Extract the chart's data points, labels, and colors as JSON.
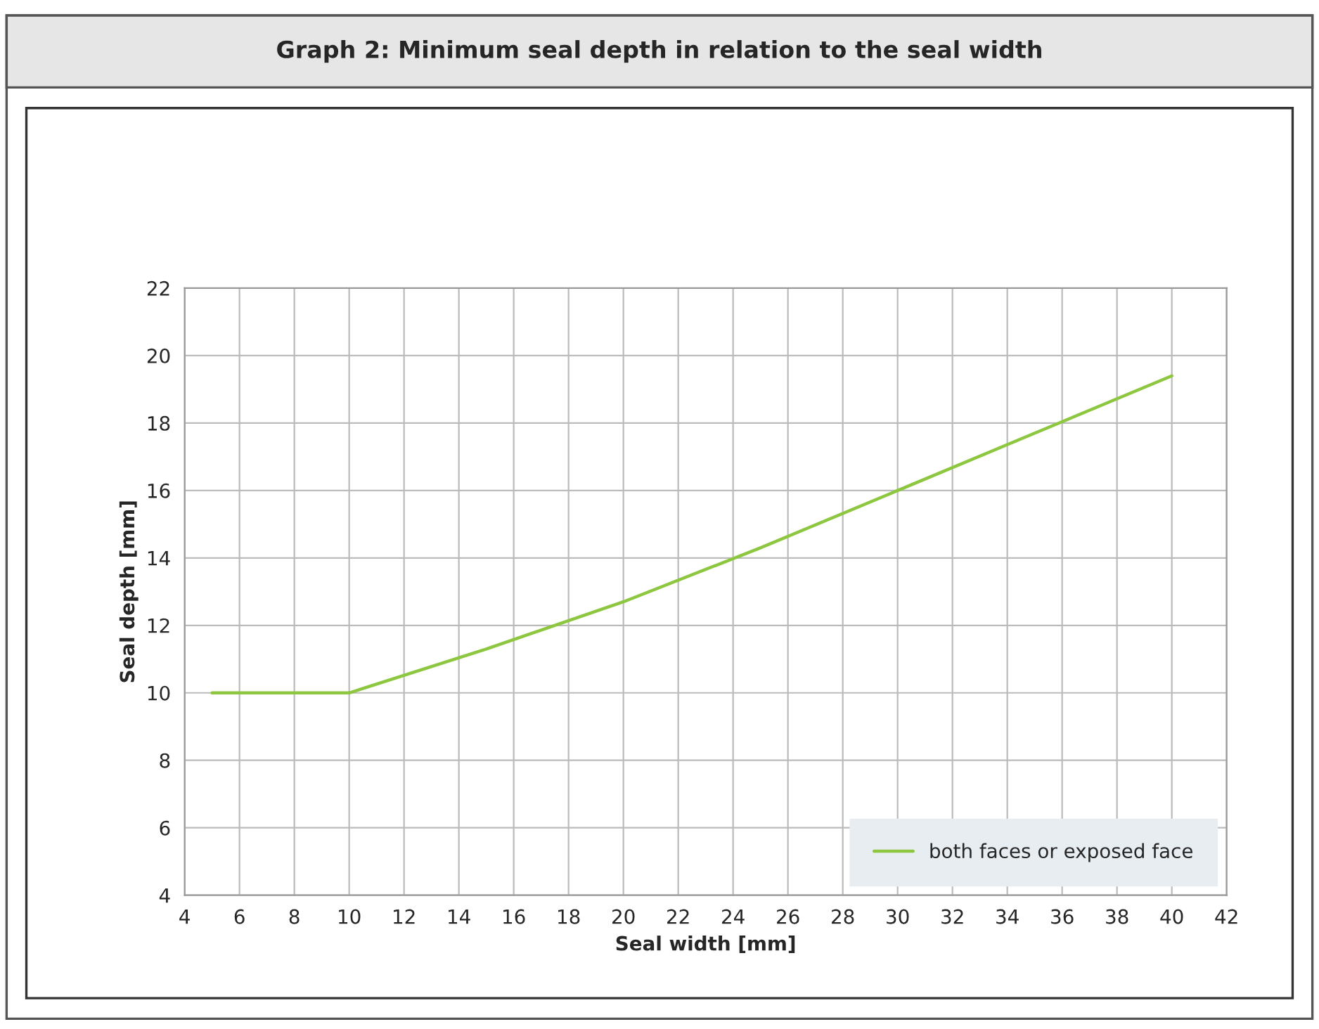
{
  "chart_data": {
    "type": "line",
    "title": "Graph 2: Minimum seal depth in relation to the seal width",
    "xlabel": "Seal width [mm]",
    "ylabel": "Seal depth [mm]",
    "series": [
      {
        "name": "both faces or exposed face",
        "color": "#8dc63f",
        "x": [
          5,
          10,
          15,
          20,
          25,
          30,
          35,
          40
        ],
        "values": [
          10,
          10,
          11.3,
          12.7,
          14.3,
          16,
          17.7,
          19.4
        ]
      }
    ],
    "xlim": [
      4,
      42
    ],
    "xticks": [
      4,
      6,
      8,
      10,
      12,
      14,
      16,
      18,
      20,
      22,
      24,
      26,
      28,
      30,
      32,
      34,
      36,
      38,
      40,
      42
    ],
    "ylim": [
      4,
      22
    ],
    "yticks": [
      4,
      6,
      8,
      10,
      12,
      14,
      16,
      18,
      20,
      22
    ],
    "grid": true,
    "legend": "bottom right",
    "marker": "none",
    "line_style": "solid"
  }
}
